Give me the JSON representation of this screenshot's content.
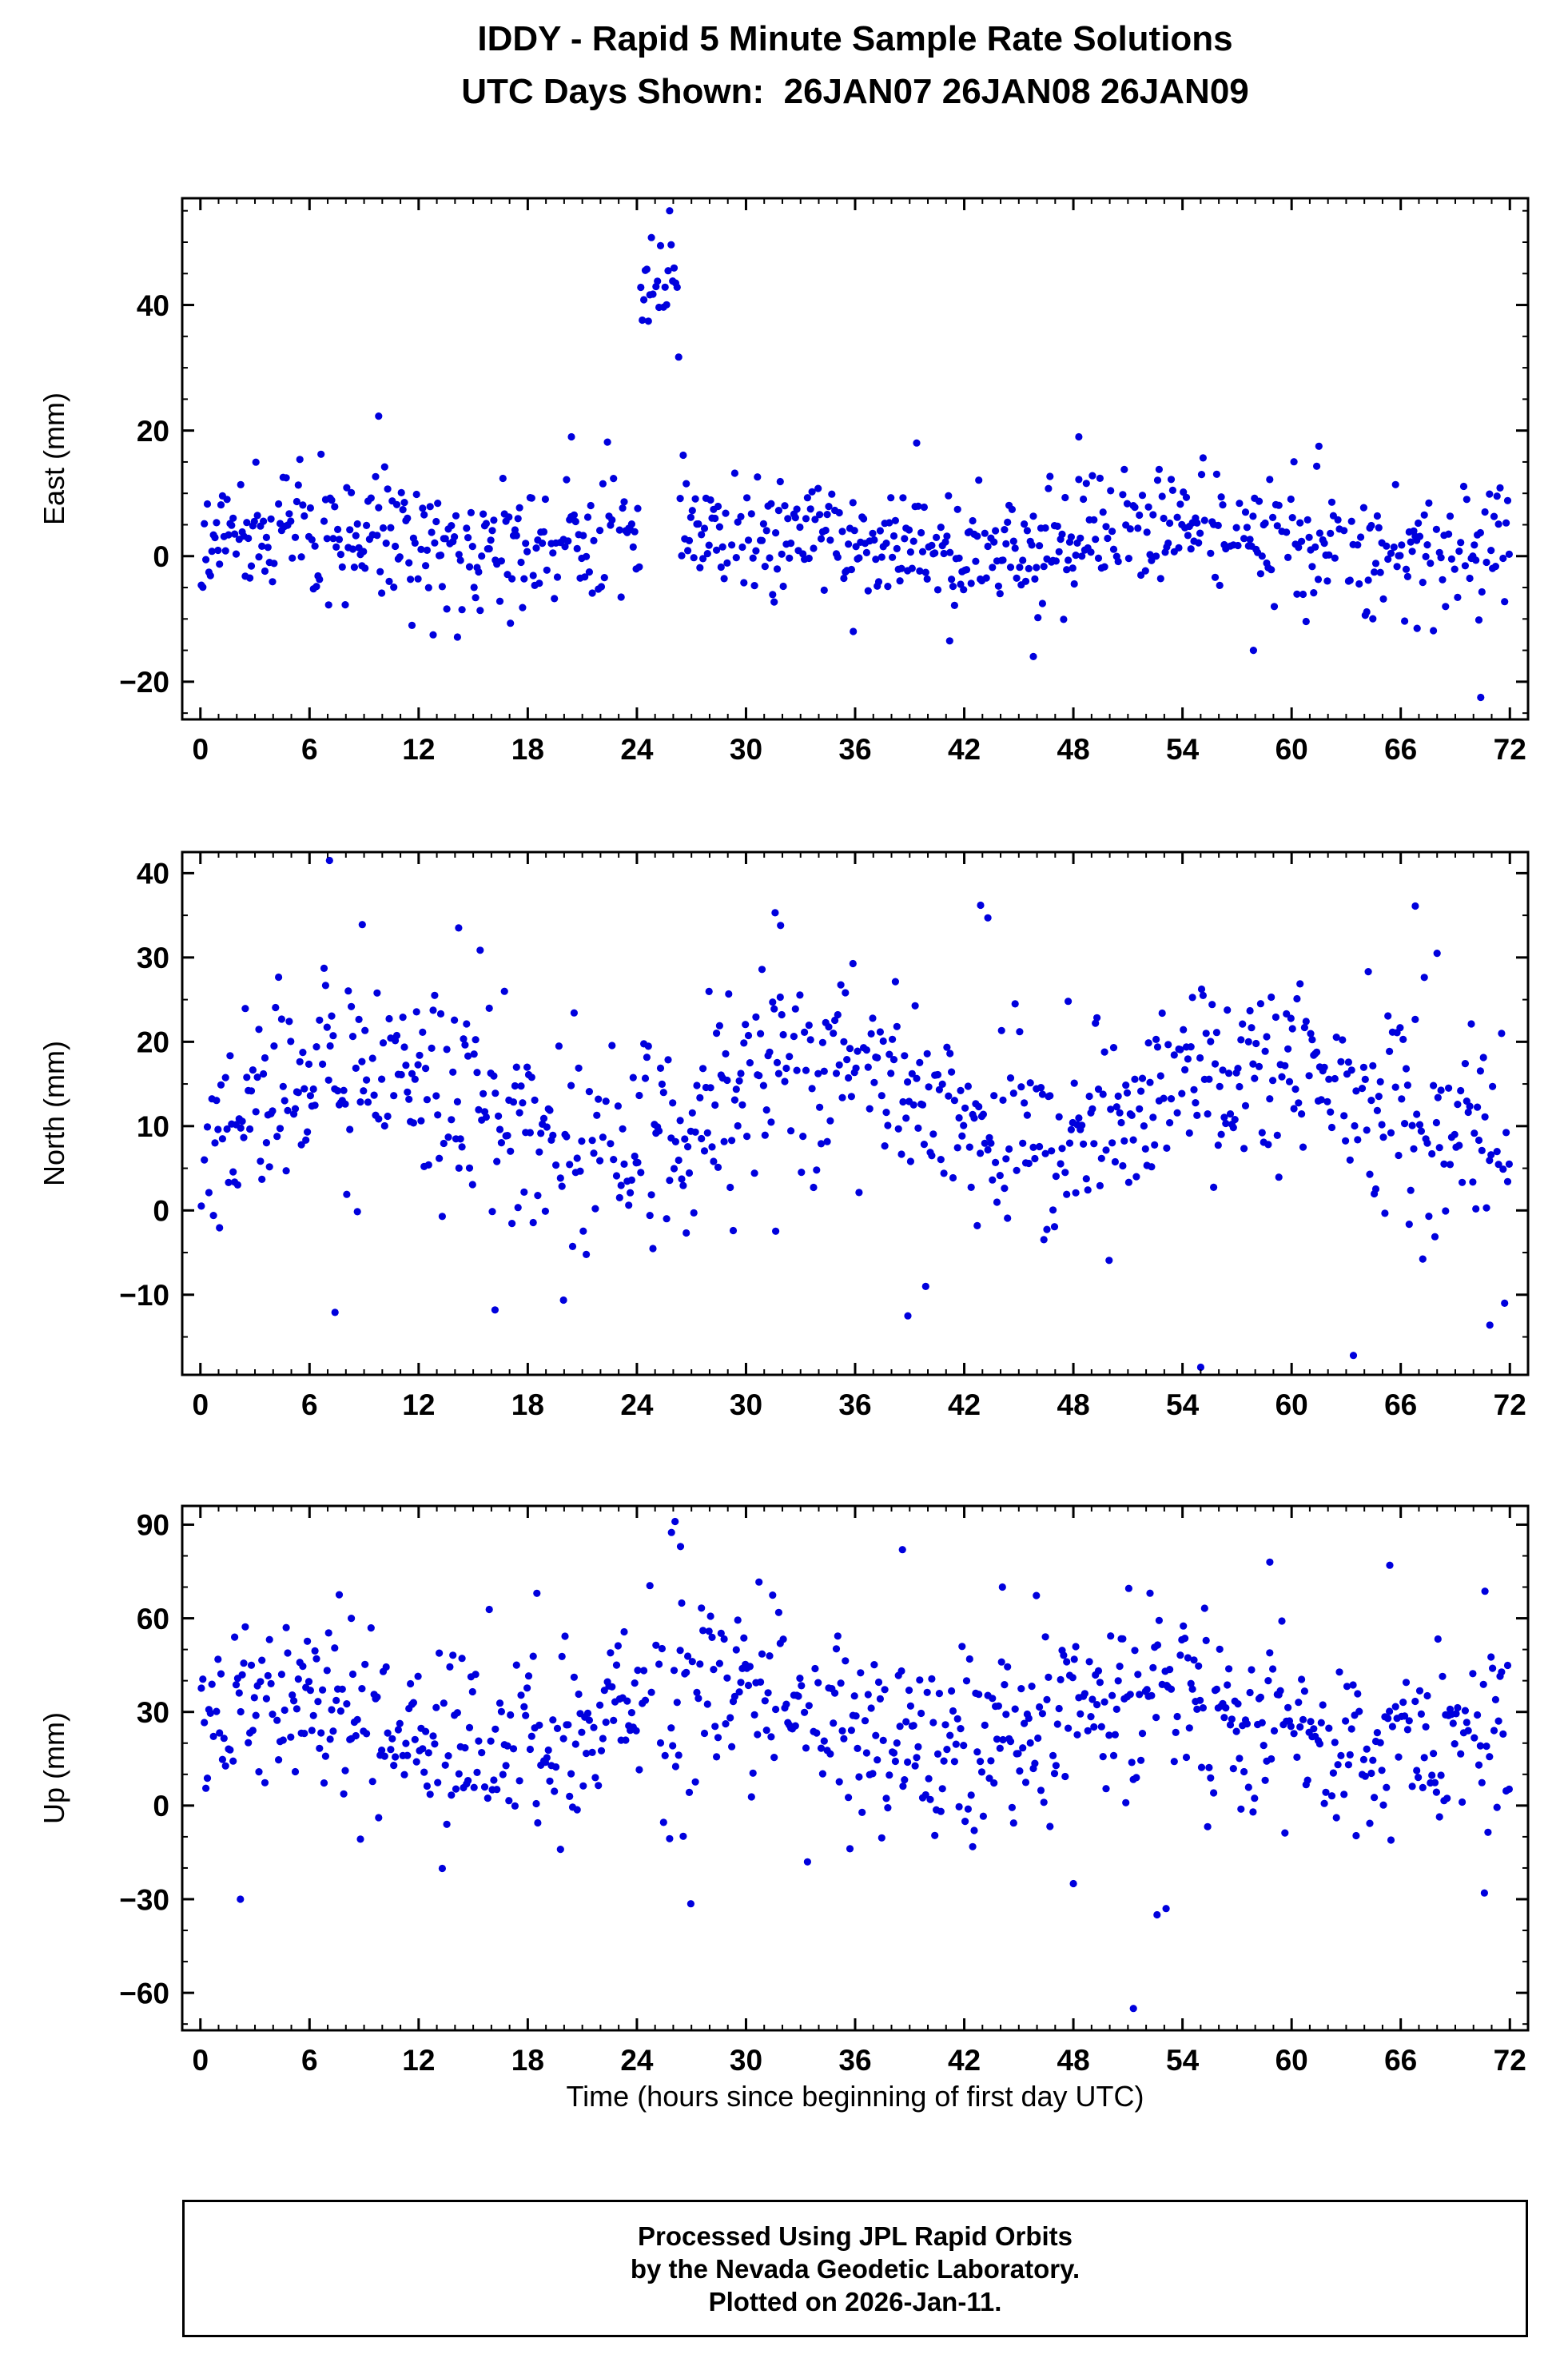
{
  "header": {
    "title": "IDDY - Rapid 5 Minute Sample Rate Solutions",
    "subtitle": "UTC Days Shown:  26JAN07 26JAN08 26JAN09"
  },
  "x_axis": {
    "label": "Time (hours since beginning of first day UTC)",
    "lim": [
      -1,
      73
    ],
    "ticks": [
      0,
      6,
      12,
      18,
      24,
      30,
      36,
      42,
      48,
      54,
      60,
      66,
      72
    ],
    "minor_step": 1
  },
  "style": {
    "marker_color": "#0000dd",
    "axis_color": "#000000",
    "background": "#ffffff"
  },
  "generation": {
    "seed": 1234567,
    "dt": 0.08333,
    "dropout": 0.1
  },
  "chart_data": [
    {
      "type": "scatter",
      "name": "east",
      "ylabel": "East (mm)",
      "ylim": [
        -26,
        57
      ],
      "yticks": [
        -20,
        0,
        20,
        40
      ],
      "y_minor_step": 5,
      "summary": "5-minute East offsets 0-72 h: noise band centered near +3 mm spanning about -12 to +18 mm; anomalous high cluster of 27-55 mm between hours ~24.2 and ~26.3; isolated low point near -22 mm at hour ~70.4.",
      "gen": {
        "t0": 0.05,
        "mean": 3,
        "daily_amp": 2.5,
        "phase": 0.3,
        "std": 5.0,
        "clamp": [
          -16,
          22
        ],
        "anomaly": {
          "x": [
            24.15,
            26.35
          ],
          "mean": 42,
          "std": 6.5,
          "clamp": [
            27,
            55
          ]
        }
      },
      "outlier_points": [
        [
          70.4,
          -22.5
        ],
        [
          45.8,
          -16
        ],
        [
          57.9,
          -15
        ],
        [
          41.2,
          -13.5
        ],
        [
          9.8,
          22.3
        ],
        [
          20.4,
          19
        ],
        [
          61.5,
          17.5
        ],
        [
          48.3,
          19
        ],
        [
          35.9,
          -12
        ],
        [
          66.9,
          -11.5
        ]
      ]
    },
    {
      "type": "scatter",
      "name": "north",
      "ylabel": "North (mm)",
      "ylim": [
        -19.5,
        42.5
      ],
      "yticks": [
        -10,
        0,
        10,
        20,
        30,
        40
      ],
      "y_minor_step": 5,
      "summary": "5-minute North offsets: band centered near +13 mm spanning about 0 to +27 mm; maxima ~41 mm near hour 7 and ~36 mm near hours 31/43; minima near -18 mm around hours 55 and 63.",
      "gen": {
        "t0": 0.05,
        "mean": 12.5,
        "daily_amp": 4.5,
        "phase": -1.2,
        "std": 6.2,
        "clamp": [
          -12,
          34
        ]
      },
      "outlier_points": [
        [
          7.1,
          41.5
        ],
        [
          8.9,
          33.9
        ],
        [
          14.2,
          33.5
        ],
        [
          31.6,
          35.3
        ],
        [
          31.9,
          33.8
        ],
        [
          42.9,
          36.2
        ],
        [
          43.3,
          34.7
        ],
        [
          55.0,
          -18.6
        ],
        [
          63.4,
          -17.2
        ],
        [
          70.9,
          -13.6
        ],
        [
          16.2,
          -11.8
        ],
        [
          7.4,
          -12.1
        ],
        [
          38.9,
          -12.5
        ],
        [
          66.8,
          36.1
        ],
        [
          68.0,
          30.5
        ]
      ]
    },
    {
      "type": "scatter",
      "name": "up",
      "ylabel": "Up (mm)",
      "ylim": [
        -72,
        96
      ],
      "yticks": [
        -60,
        -30,
        0,
        30,
        60,
        90
      ],
      "y_minor_step": 10,
      "summary": "5-minute Up offsets: band centered near +28 mm spanning about -10 to +60 mm; large spread between hours ~24.5 and ~27.5 reaching ~91 mm; low outlier near -65 mm at hour ~51.",
      "gen": {
        "t0": 0.05,
        "mean": 27,
        "daily_amp": 9,
        "phase": 0.6,
        "std": 15,
        "clamp": [
          -32,
          72
        ],
        "spread_window": {
          "x": [
            24.4,
            27.6
          ],
          "std": 26,
          "clamp": [
            -33,
            91
          ]
        }
      },
      "outlier_points": [
        [
          51.3,
          -65
        ],
        [
          26.1,
          91
        ],
        [
          25.9,
          87.5
        ],
        [
          26.4,
          83
        ],
        [
          38.6,
          82
        ],
        [
          58.8,
          78
        ],
        [
          65.4,
          77
        ],
        [
          52.6,
          -35
        ],
        [
          53.1,
          -33
        ],
        [
          2.2,
          -30
        ],
        [
          48.0,
          -25
        ],
        [
          70.6,
          -28
        ],
        [
          44.1,
          70
        ],
        [
          18.5,
          68
        ],
        [
          8.3,
          60
        ]
      ]
    }
  ],
  "footer": {
    "lines": [
      "Processed Using JPL Rapid Orbits",
      "by the Nevada Geodetic Laboratory.",
      "Plotted on 2026-Jan-11."
    ]
  }
}
